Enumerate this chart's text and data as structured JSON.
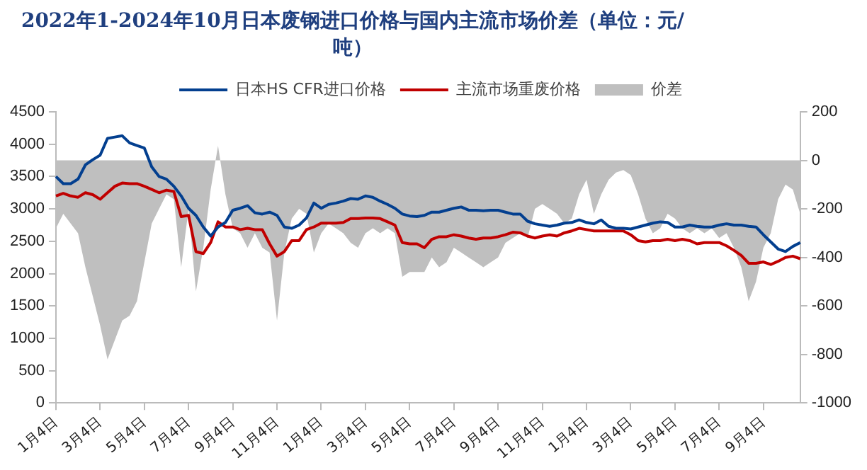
{
  "chart_data": {
    "type": "line",
    "title": "2022年1-2024年10月日本废钢进口价格与国内主流市场价差（单位：元/吨）",
    "categories": [
      "1月4日",
      null,
      null,
      null,
      null,
      null,
      "3月4日",
      null,
      null,
      null,
      null,
      null,
      "5月4日",
      null,
      null,
      null,
      null,
      null,
      "7月4日",
      null,
      null,
      null,
      null,
      null,
      "9月4日",
      null,
      null,
      null,
      null,
      null,
      "11月4日",
      null,
      null,
      null,
      null,
      null,
      "1月4日",
      null,
      null,
      null,
      null,
      null,
      "3月4日",
      null,
      null,
      null,
      null,
      null,
      "5月4日",
      null,
      null,
      null,
      null,
      null,
      "7月4日",
      null,
      null,
      null,
      null,
      null,
      "9月4日",
      null,
      null,
      null,
      null,
      null,
      "11月4日",
      null,
      null,
      null,
      null,
      null,
      "1月4日",
      null,
      null,
      null,
      null,
      null,
      "3月4日",
      null,
      null,
      null,
      null,
      null,
      "5月4日",
      null,
      null,
      null,
      null,
      null,
      "7月4日",
      null,
      null,
      null,
      null,
      null,
      "9月4日",
      null,
      null,
      null,
      null,
      null
    ],
    "series": [
      {
        "name": "价差",
        "type": "area",
        "axis": "y2",
        "color": "#bfbfbf",
        "values": [
          -280,
          -220,
          -260,
          -300,
          -440,
          -560,
          -680,
          -820,
          -740,
          -660,
          -640,
          -580,
          -420,
          -260,
          -200,
          -140,
          -160,
          -440,
          -200,
          -540,
          -360,
          -120,
          60,
          -140,
          -280,
          -300,
          -360,
          -300,
          -360,
          -380,
          -660,
          -380,
          -240,
          -200,
          -220,
          -380,
          -300,
          -260,
          -280,
          -300,
          -340,
          -360,
          -300,
          -280,
          -300,
          -280,
          -300,
          -480,
          -460,
          -460,
          -460,
          -400,
          -440,
          -420,
          -360,
          -380,
          -400,
          -420,
          -440,
          -420,
          -400,
          -340,
          -320,
          -300,
          -320,
          -200,
          -180,
          -200,
          -220,
          -260,
          -240,
          -140,
          -80,
          -220,
          -140,
          -80,
          -50,
          -40,
          -60,
          -140,
          -240,
          -300,
          -280,
          -220,
          -240,
          -280,
          -300,
          -280,
          -300,
          -280,
          -320,
          -300,
          -360,
          -440,
          -580,
          -500,
          -360,
          -300,
          -160,
          -100,
          -120,
          -220
        ]
      },
      {
        "name": "日本HS CFR进口价格",
        "type": "line",
        "color": "#033f8f",
        "values": [
          3500,
          3390,
          3390,
          3460,
          3680,
          3760,
          3830,
          4090,
          4110,
          4130,
          4020,
          3980,
          3940,
          3650,
          3500,
          3460,
          3350,
          3200,
          3010,
          2900,
          2720,
          2580,
          2720,
          2790,
          2980,
          3010,
          3050,
          2940,
          2920,
          2950,
          2900,
          2720,
          2700,
          2750,
          2860,
          3090,
          3010,
          3070,
          3090,
          3120,
          3160,
          3150,
          3200,
          3180,
          3120,
          3070,
          3010,
          2920,
          2890,
          2880,
          2900,
          2950,
          2950,
          2980,
          3010,
          3030,
          2980,
          2980,
          2970,
          2980,
          2980,
          2950,
          2920,
          2920,
          2810,
          2770,
          2750,
          2730,
          2750,
          2780,
          2790,
          2830,
          2790,
          2770,
          2830,
          2730,
          2700,
          2700,
          2690,
          2720,
          2750,
          2780,
          2800,
          2790,
          2720,
          2720,
          2750,
          2730,
          2720,
          2720,
          2750,
          2770,
          2750,
          2750,
          2730,
          2720,
          2600,
          2490,
          2380,
          2340,
          2420,
          2480
        ]
      },
      {
        "name": "主流市场重废价格",
        "type": "line",
        "color": "#c00000",
        "values": [
          3200,
          3240,
          3200,
          3180,
          3250,
          3220,
          3150,
          3250,
          3350,
          3400,
          3390,
          3390,
          3350,
          3300,
          3250,
          3290,
          3270,
          2880,
          2900,
          2340,
          2310,
          2480,
          2800,
          2720,
          2720,
          2680,
          2700,
          2680,
          2680,
          2460,
          2270,
          2340,
          2510,
          2510,
          2680,
          2720,
          2780,
          2780,
          2780,
          2790,
          2850,
          2850,
          2860,
          2860,
          2850,
          2800,
          2750,
          2480,
          2460,
          2460,
          2400,
          2530,
          2570,
          2570,
          2600,
          2580,
          2550,
          2530,
          2550,
          2550,
          2570,
          2600,
          2640,
          2630,
          2580,
          2550,
          2580,
          2600,
          2580,
          2630,
          2660,
          2700,
          2680,
          2660,
          2660,
          2660,
          2660,
          2660,
          2600,
          2510,
          2490,
          2510,
          2510,
          2530,
          2510,
          2530,
          2510,
          2460,
          2480,
          2480,
          2480,
          2430,
          2360,
          2280,
          2160,
          2160,
          2180,
          2140,
          2190,
          2250,
          2270,
          2230
        ]
      }
    ],
    "ylim": [
      0,
      4500
    ],
    "yticks": [
      0,
      500,
      1000,
      1500,
      2000,
      2500,
      3000,
      3500,
      4000,
      4500
    ],
    "y2lim": [
      -1000,
      200
    ],
    "y2ticks": [
      -1000,
      -800,
      -600,
      -400,
      -200,
      0,
      200
    ],
    "legend": "top",
    "grid": false,
    "marker": "none",
    "line_style": "solid"
  }
}
